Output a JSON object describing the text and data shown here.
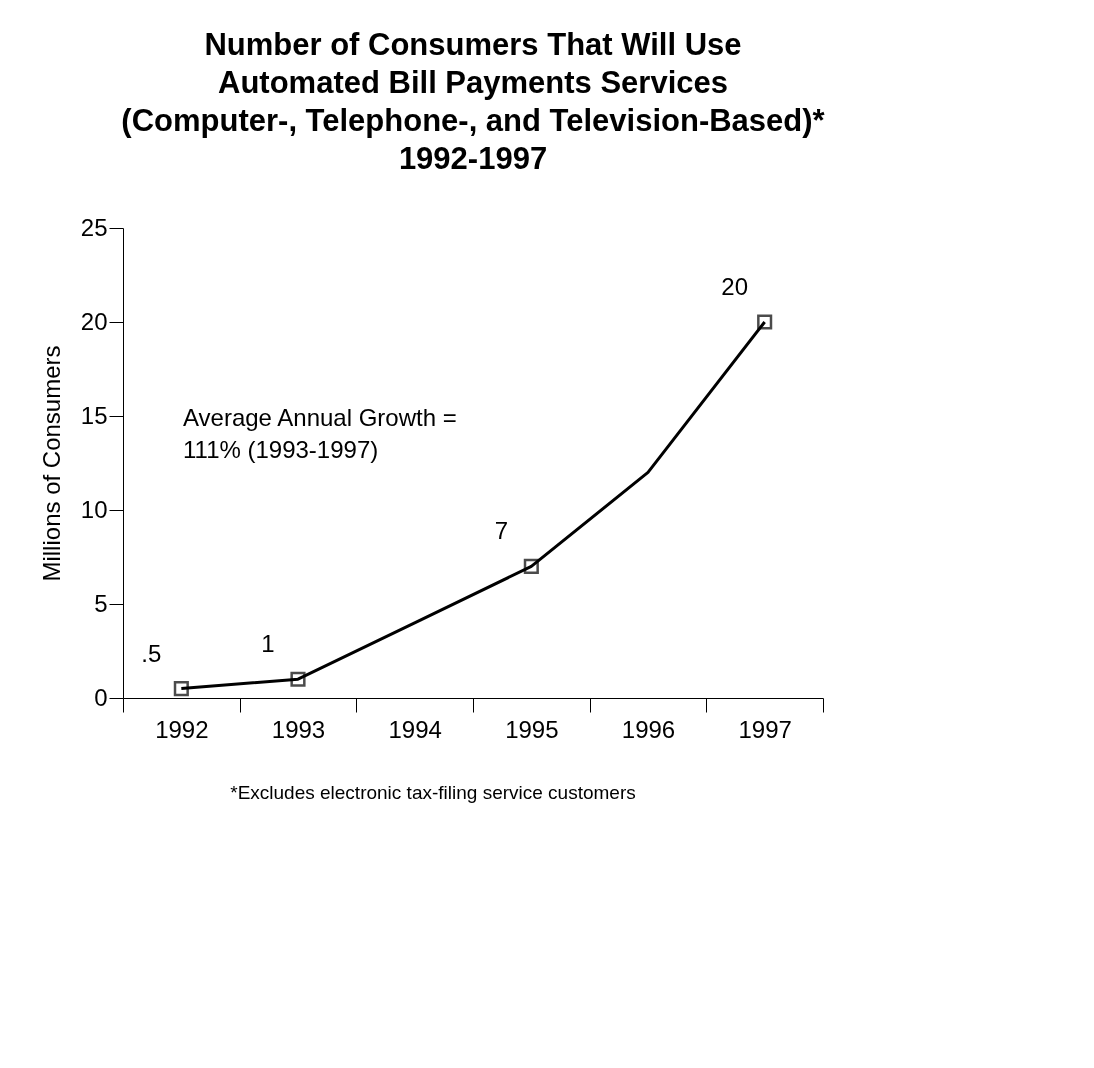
{
  "chart_data": {
    "type": "line",
    "title": "Number of Consumers That Will Use\nAutomated Bill Payments Services\n(Computer-, Telephone-, and Television-Based)*\n1992-1997",
    "ylabel": "Millions of Consumers",
    "categories": [
      "1992",
      "1993",
      "1994",
      "1995",
      "1996",
      "1997"
    ],
    "series": [
      {
        "type": "line",
        "color": "#000000",
        "marker": "none",
        "values": [
          0.5,
          1,
          4,
          7,
          12,
          20
        ]
      },
      {
        "type": "scatter",
        "color": "#000000",
        "marker": "square",
        "values": [
          0.5,
          1,
          null,
          7,
          null,
          20
        ],
        "value_labels": [
          ".5",
          "1",
          null,
          "7",
          null,
          "20"
        ]
      }
    ],
    "ylim": [
      0,
      25
    ],
    "yticks": [
      0,
      5,
      10,
      15,
      20,
      25
    ],
    "grid": false,
    "annotations": [
      "Average Annual Growth =\n111% (1993-1997)",
      "*Excludes electronic tax-filing service customers"
    ]
  }
}
